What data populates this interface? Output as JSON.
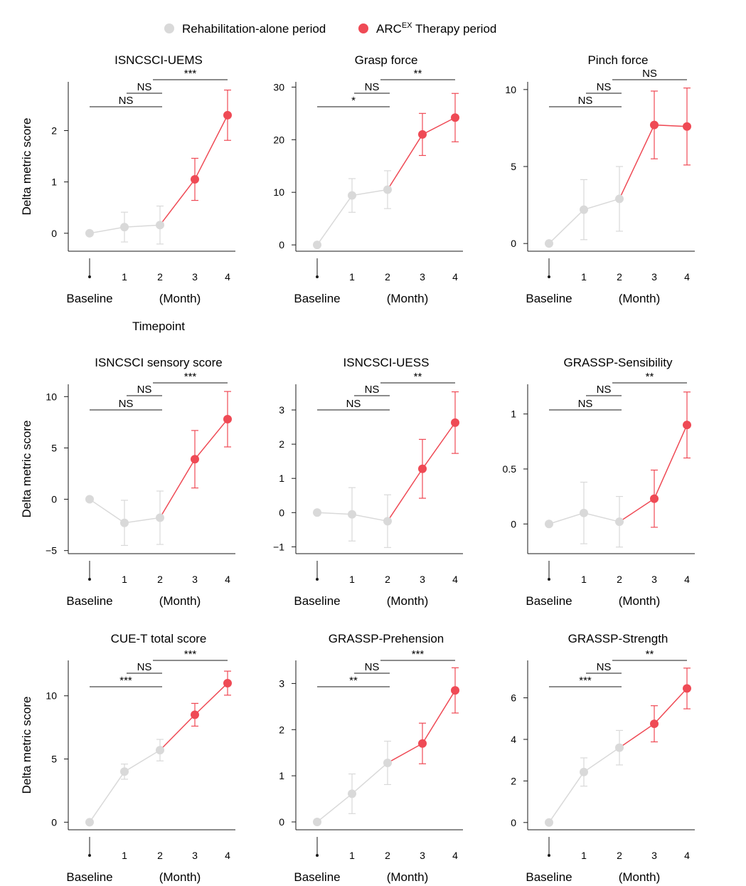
{
  "legend": {
    "items": [
      {
        "label": "Rehabilitation-alone period",
        "color": "#d9d9d9"
      },
      {
        "label_main": "ARC",
        "label_sup": "EX",
        "label_rest": " Therapy period",
        "color": "#ef4a55"
      }
    ]
  },
  "axis_text": {
    "ylabel": "Delta metric score",
    "baseline": "Baseline",
    "month": "(Month)",
    "timepoint": "Timepoint",
    "x_ticks": [
      "1",
      "2",
      "3",
      "4"
    ]
  },
  "colors": {
    "rehab": "#d9d9d9",
    "arc": "#ef4a55",
    "axis": "#1a1a1a"
  },
  "chart_data": [
    {
      "type": "line",
      "title": "ISNCSCI-UEMS",
      "x": [
        0,
        1,
        2,
        3,
        4
      ],
      "y": [
        0,
        0.12,
        0.16,
        1.05,
        2.3
      ],
      "err": [
        0,
        0.29,
        0.37,
        0.41,
        0.49
      ],
      "ylim": [
        -0.35,
        2.95
      ],
      "yticks": [
        0,
        1,
        2
      ],
      "series": [
        {
          "name": "Rehabilitation-alone period",
          "points": [
            0,
            1,
            2
          ]
        },
        {
          "name": "ARCEX Therapy period",
          "points": [
            2,
            3,
            4
          ]
        }
      ],
      "brackets": [
        {
          "from": 0,
          "to": 2,
          "label": "NS"
        },
        {
          "from": 1,
          "to": 2,
          "label": "NS"
        },
        {
          "from": 2,
          "to": 4,
          "label": "***"
        }
      ]
    },
    {
      "type": "line",
      "title": "Grasp force",
      "x": [
        0,
        1,
        2,
        3,
        4
      ],
      "y": [
        0,
        9.4,
        10.5,
        21,
        24.2
      ],
      "err": [
        0,
        3.2,
        3.6,
        4,
        4.6
      ],
      "ylim": [
        -1.2,
        31
      ],
      "yticks": [
        0,
        10,
        20,
        30
      ],
      "brackets": [
        {
          "from": 0,
          "to": 2,
          "label": "*"
        },
        {
          "from": 1,
          "to": 2,
          "label": "NS"
        },
        {
          "from": 2,
          "to": 4,
          "label": "**"
        }
      ]
    },
    {
      "type": "line",
      "title": "Pinch force",
      "x": [
        0,
        1,
        2,
        3,
        4
      ],
      "y": [
        0,
        2.2,
        2.9,
        7.7,
        7.6
      ],
      "err": [
        0,
        1.95,
        2.1,
        2.2,
        2.5
      ],
      "ylim": [
        -0.5,
        10.5
      ],
      "yticks": [
        0,
        5,
        10
      ],
      "brackets": [
        {
          "from": 0,
          "to": 2,
          "label": "NS"
        },
        {
          "from": 1,
          "to": 2,
          "label": "NS"
        },
        {
          "from": 2,
          "to": 4,
          "label": "NS"
        }
      ]
    },
    {
      "type": "line",
      "title": "ISNCSCI sensory score",
      "x": [
        0,
        1,
        2,
        3,
        4
      ],
      "y": [
        0,
        -2.3,
        -1.8,
        3.9,
        7.8
      ],
      "err": [
        0,
        2.2,
        2.6,
        2.8,
        2.7
      ],
      "ylim": [
        -5.3,
        11.2
      ],
      "yticks": [
        -5,
        0,
        5,
        10
      ],
      "brackets": [
        {
          "from": 0,
          "to": 2,
          "label": "NS"
        },
        {
          "from": 1,
          "to": 2,
          "label": "NS"
        },
        {
          "from": 2,
          "to": 4,
          "label": "***"
        }
      ]
    },
    {
      "type": "line",
      "title": "ISNCSCI-UESS",
      "x": [
        0,
        1,
        2,
        3,
        4
      ],
      "y": [
        0,
        -0.05,
        -0.25,
        1.28,
        2.63
      ],
      "err": [
        0,
        0.78,
        0.77,
        0.86,
        0.9
      ],
      "ylim": [
        -1.2,
        3.75
      ],
      "yticks": [
        -1,
        0,
        1,
        2,
        3
      ],
      "brackets": [
        {
          "from": 0,
          "to": 2,
          "label": "NS"
        },
        {
          "from": 1,
          "to": 2,
          "label": "NS"
        },
        {
          "from": 2,
          "to": 4,
          "label": "**"
        }
      ]
    },
    {
      "type": "line",
      "title": "GRASSP-Sensibility",
      "x": [
        0,
        1,
        2,
        3,
        4
      ],
      "y": [
        0,
        0.1,
        0.02,
        0.23,
        0.9
      ],
      "err": [
        0,
        0.28,
        0.23,
        0.26,
        0.3
      ],
      "ylim": [
        -0.27,
        1.27
      ],
      "yticks": [
        0,
        0.5,
        1
      ],
      "brackets": [
        {
          "from": 0,
          "to": 2,
          "label": "NS"
        },
        {
          "from": 1,
          "to": 2,
          "label": "NS"
        },
        {
          "from": 2,
          "to": 4,
          "label": "**"
        }
      ]
    },
    {
      "type": "line",
      "title": "CUE-T total score",
      "x": [
        0,
        1,
        2,
        3,
        4
      ],
      "y": [
        0,
        4,
        5.7,
        8.5,
        11
      ],
      "err": [
        0,
        0.6,
        0.85,
        0.9,
        0.95
      ],
      "ylim": [
        -0.6,
        12.8
      ],
      "yticks": [
        0,
        5,
        10
      ],
      "brackets": [
        {
          "from": 0,
          "to": 2,
          "label": "***"
        },
        {
          "from": 1,
          "to": 2,
          "label": "NS"
        },
        {
          "from": 2,
          "to": 4,
          "label": "***"
        }
      ]
    },
    {
      "type": "line",
      "title": "GRASSP-Prehension",
      "x": [
        0,
        1,
        2,
        3,
        4
      ],
      "y": [
        0,
        0.61,
        1.28,
        1.7,
        2.85
      ],
      "err": [
        0,
        0.43,
        0.47,
        0.44,
        0.49
      ],
      "ylim": [
        -0.17,
        3.5
      ],
      "yticks": [
        0,
        1,
        2,
        3
      ],
      "brackets": [
        {
          "from": 0,
          "to": 2,
          "label": "**"
        },
        {
          "from": 1,
          "to": 2,
          "label": "NS"
        },
        {
          "from": 2,
          "to": 4,
          "label": "***"
        }
      ]
    },
    {
      "type": "line",
      "title": "GRASSP-Strength",
      "x": [
        0,
        1,
        2,
        3,
        4
      ],
      "y": [
        0,
        2.43,
        3.6,
        4.75,
        6.45
      ],
      "err": [
        0,
        0.68,
        0.83,
        0.87,
        0.98
      ],
      "ylim": [
        -0.35,
        7.8
      ],
      "yticks": [
        0,
        2,
        4,
        6
      ],
      "brackets": [
        {
          "from": 0,
          "to": 2,
          "label": "***"
        },
        {
          "from": 1,
          "to": 2,
          "label": "NS"
        },
        {
          "from": 2,
          "to": 4,
          "label": "**"
        }
      ]
    }
  ]
}
